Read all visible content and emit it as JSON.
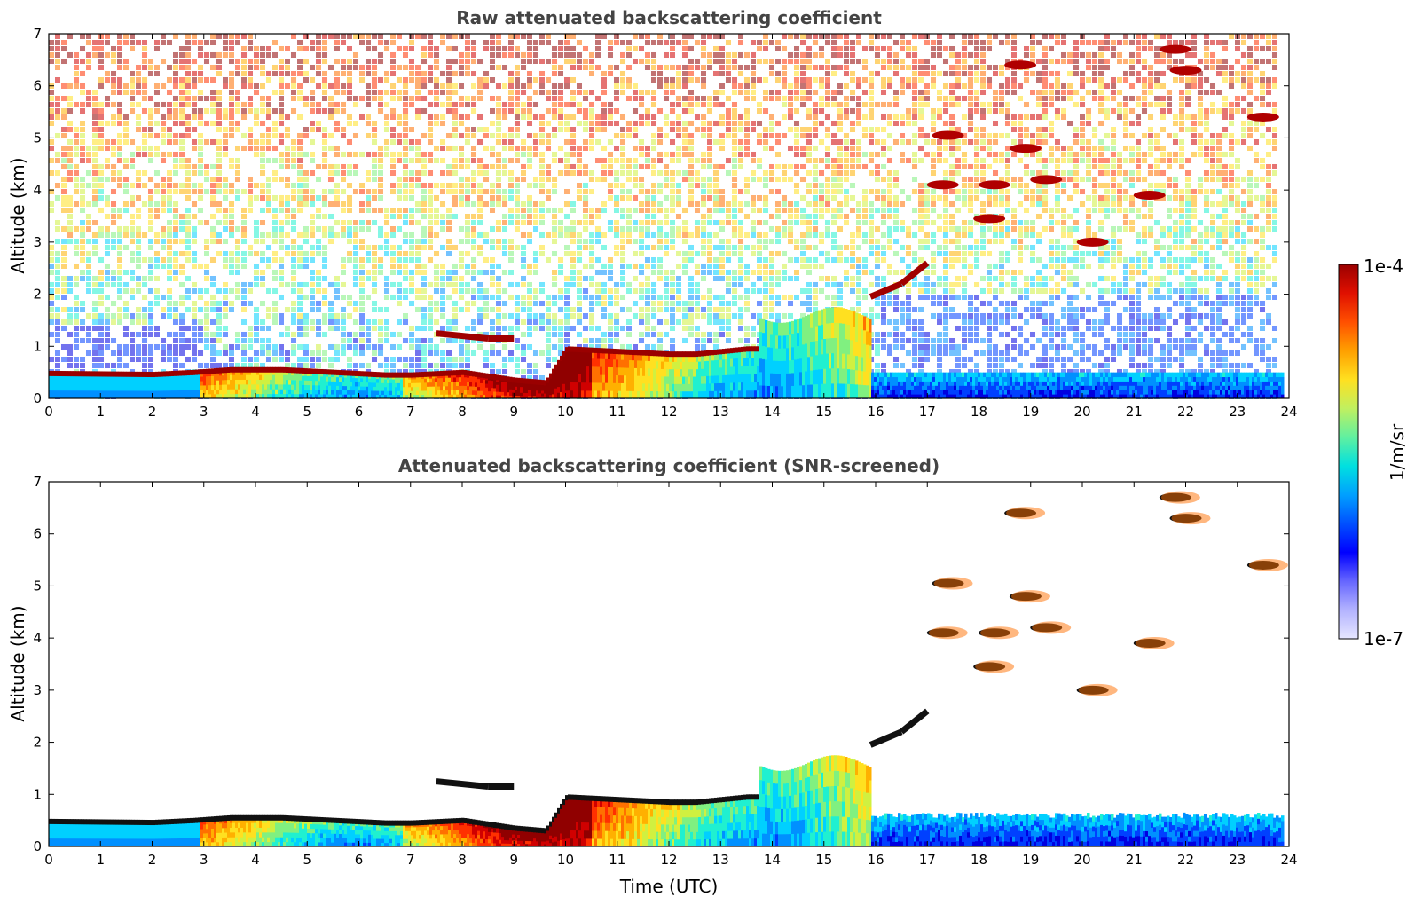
{
  "chart_data": [
    {
      "type": "heatmap",
      "title": "Raw attenuated backscattering coefficient",
      "xlabel": "",
      "ylabel": "Altitude (km)",
      "xlim": [
        0,
        24
      ],
      "ylim": [
        0,
        7
      ],
      "x_ticks": [
        "0",
        "1",
        "2",
        "3",
        "4",
        "5",
        "6",
        "7",
        "8",
        "9",
        "10",
        "11",
        "12",
        "13",
        "14",
        "15",
        "16",
        "17",
        "18",
        "19",
        "20",
        "21",
        "22",
        "23",
        "24"
      ],
      "y_ticks": [
        "0",
        "1",
        "2",
        "3",
        "4",
        "5",
        "6",
        "7"
      ],
      "screened": false,
      "features": [
        {
          "name": "boundary-layer-top",
          "points": [
            [
              0,
              0.48
            ],
            [
              1,
              0.47
            ],
            [
              2,
              0.46
            ],
            [
              2.8,
              0.5
            ],
            [
              3.5,
              0.55
            ],
            [
              4.5,
              0.55
            ],
            [
              5.5,
              0.5
            ],
            [
              6.5,
              0.45
            ],
            [
              7,
              0.45
            ],
            [
              8,
              0.5
            ],
            [
              9,
              0.35
            ],
            [
              9.6,
              0.3
            ],
            [
              10,
              0.95
            ],
            [
              11,
              0.9
            ],
            [
              12,
              0.85
            ],
            [
              12.5,
              0.85
            ],
            [
              13.5,
              0.95
            ]
          ]
        },
        {
          "name": "residual-layer",
          "points": [
            [
              7.5,
              1.25
            ],
            [
              8.5,
              1.15
            ],
            [
              9,
              1.15
            ]
          ]
        },
        {
          "name": "rising-layer",
          "points": [
            [
              15.9,
              1.95
            ],
            [
              16.5,
              2.2
            ],
            [
              17,
              2.6
            ]
          ]
        },
        {
          "name": "cloud-patches",
          "patches": [
            [
              18.8,
              6.4
            ],
            [
              21.8,
              6.7
            ],
            [
              22.0,
              6.3
            ],
            [
              17.4,
              5.05
            ],
            [
              18.9,
              4.8
            ],
            [
              17.3,
              4.1
            ],
            [
              18.3,
              4.1
            ],
            [
              19.3,
              4.2
            ],
            [
              18.2,
              3.45
            ],
            [
              20.2,
              3.0
            ],
            [
              23.5,
              5.4
            ],
            [
              21.3,
              3.9
            ]
          ]
        }
      ]
    },
    {
      "type": "heatmap",
      "title": "Attenuated backscattering coefficient (SNR-screened)",
      "xlabel": "Time (UTC)",
      "ylabel": "Altitude (km)",
      "xlim": [
        0,
        24
      ],
      "ylim": [
        0,
        7
      ],
      "x_ticks": [
        "0",
        "1",
        "2",
        "3",
        "4",
        "5",
        "6",
        "7",
        "8",
        "9",
        "10",
        "11",
        "12",
        "13",
        "14",
        "15",
        "16",
        "17",
        "18",
        "19",
        "20",
        "21",
        "22",
        "23",
        "24"
      ],
      "y_ticks": [
        "0",
        "1",
        "2",
        "3",
        "4",
        "5",
        "6",
        "7"
      ],
      "screened": true
    }
  ],
  "colorbar": {
    "label": "1/m/sr",
    "max_label": "1e-4",
    "min_label": "1e-7",
    "scale": "log",
    "colors": [
      "#e6e6ff",
      "#b3b3ff",
      "#6666ff",
      "#0000ff",
      "#0050ff",
      "#00a0ff",
      "#00e0e0",
      "#60f0a0",
      "#c0f060",
      "#ffe020",
      "#ffa000",
      "#ff5000",
      "#e01000",
      "#9a0000"
    ]
  }
}
